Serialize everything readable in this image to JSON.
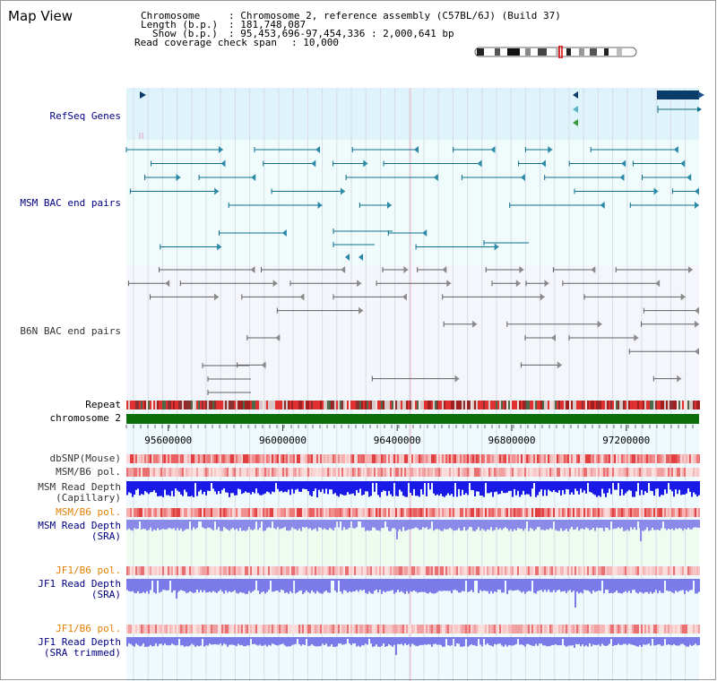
{
  "title": "Map View",
  "info": {
    "chromosome_key": "Chromosome",
    "chromosome_value": ": Chromosome 2, reference assembly (C57BL/6J) (Build 37)",
    "length_key": "Length (b.p.)",
    "length_value": ": 181,748,087",
    "show_key": "Show (b.p.)",
    "show_value": ": 95,453,696-97,454,336 : 2,000,641 bp",
    "coverage_key": "Read coverage check span",
    "coverage_value": ": 10,000"
  },
  "tracks": {
    "refseq": "RefSeq Genes",
    "msm_bac": "MSM BAC end pairs",
    "b6n_bac": "B6N BAC end pairs",
    "repeat": "Repeat",
    "chromosome": "chromosome 2",
    "dbsnp": "dbSNP(Mouse)",
    "msm_b6_pol": "MSM/B6 pol.",
    "msm_depth_cap": "MSM Read Depth\n(Capillary)",
    "msm_b6_pol2": "MSM/B6 pol.",
    "msm_depth_sra": "MSM Read Depth\n(SRA)",
    "jf1_b6_pol": "JF1/B6 pol.",
    "jf1_depth_sra": "JF1 Read Depth\n(SRA)",
    "jf1_b6_pol2": "JF1/B6 pol.",
    "jf1_depth_trim": "JF1 Read Depth\n(SRA trimmed)"
  },
  "axis": {
    "start_bp": 95453696,
    "end_bp": 97454336,
    "ticks": [
      {
        "value": 95600000,
        "label": "95600000"
      },
      {
        "value": 96000000,
        "label": "96000000"
      },
      {
        "value": 96400000,
        "label": "96400000"
      },
      {
        "value": 96800000,
        "label": "96800000"
      },
      {
        "value": 97200000,
        "label": "97200000"
      }
    ]
  },
  "colors": {
    "refseq_bg": "#dff3fb",
    "track_bg": "#f0fcfc",
    "b6n_bg": "#f4f6fc",
    "gene": "#0a3c6a",
    "msm_bac": "#0f6e8a",
    "b6n_bac": "#606060",
    "chromosome": "#0a6e0a",
    "label_dark": "#000080",
    "label_orange": "#e08000",
    "label_gray": "#333333"
  },
  "icons": {
    "ideogram": "chromosome-ideogram-icon"
  }
}
